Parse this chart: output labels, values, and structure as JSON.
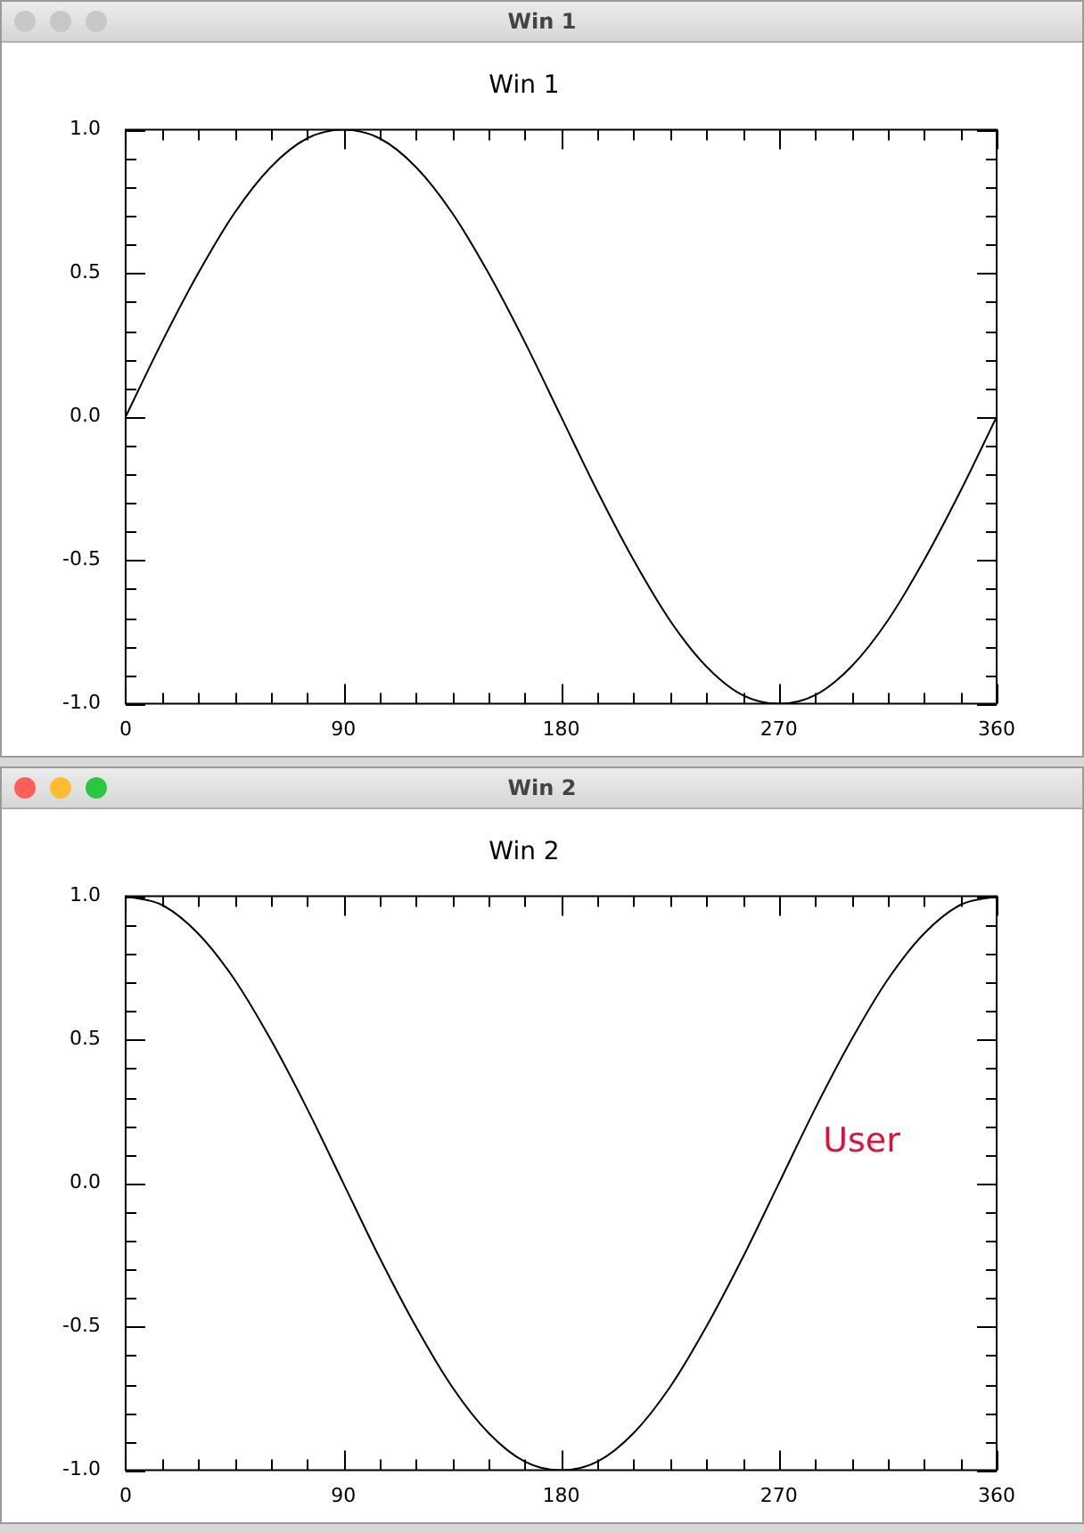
{
  "chart_data": [
    {
      "type": "line",
      "title": "Win 1",
      "x": [
        0,
        15,
        30,
        45,
        60,
        75,
        90,
        105,
        120,
        135,
        150,
        165,
        180,
        195,
        210,
        225,
        240,
        255,
        270,
        285,
        300,
        315,
        330,
        345,
        360
      ],
      "series": [
        {
          "color": "#000000",
          "values": [
            0,
            0.26,
            0.5,
            0.71,
            0.87,
            0.97,
            1,
            0.97,
            0.87,
            0.71,
            0.5,
            0.26,
            0,
            -0.26,
            -0.5,
            -0.71,
            -0.87,
            -0.97,
            -1,
            -0.97,
            -0.87,
            -0.71,
            -0.5,
            -0.26,
            0
          ]
        }
      ],
      "xlim": [
        0,
        360
      ],
      "xticks": [
        0,
        {
          "value": 15,
          "label": null
        },
        {
          "value": 30,
          "label": null
        },
        {
          "value": 45,
          "label": null
        },
        {
          "value": 60,
          "label": null
        },
        {
          "value": 75,
          "label": null
        },
        90,
        {
          "value": 105,
          "label": null
        },
        {
          "value": 120,
          "label": null
        },
        {
          "value": 135,
          "label": null
        },
        {
          "value": 150,
          "label": null
        },
        {
          "value": 165,
          "label": null
        },
        180,
        {
          "value": 195,
          "label": null
        },
        {
          "value": 210,
          "label": null
        },
        {
          "value": 225,
          "label": null
        },
        {
          "value": 240,
          "label": null
        },
        {
          "value": 255,
          "label": null
        },
        270,
        {
          "value": 285,
          "label": null
        },
        {
          "value": 300,
          "label": null
        },
        {
          "value": 315,
          "label": null
        },
        {
          "value": 330,
          "label": null
        },
        {
          "value": 345,
          "label": null
        },
        360
      ],
      "ylim": [
        -1,
        1
      ],
      "yticks": [
        {
          "value": -1,
          "label": "-1.0"
        },
        {
          "value": -0.9,
          "label": null
        },
        {
          "value": -0.8,
          "label": null
        },
        {
          "value": -0.7,
          "label": null
        },
        {
          "value": -0.6,
          "label": null
        },
        {
          "value": -0.5,
          "label": "-0.5"
        },
        {
          "value": -0.4,
          "label": null
        },
        {
          "value": -0.3,
          "label": null
        },
        {
          "value": -0.2,
          "label": null
        },
        {
          "value": -0.1,
          "label": null
        },
        {
          "value": 0,
          "label": "0.0"
        },
        {
          "value": 0.1,
          "label": null
        },
        {
          "value": 0.2,
          "label": null
        },
        {
          "value": 0.3,
          "label": null
        },
        {
          "value": 0.4,
          "label": null
        },
        {
          "value": 0.5,
          "label": "0.5"
        },
        {
          "value": 0.6,
          "label": null
        },
        {
          "value": 0.7,
          "label": null
        },
        {
          "value": 0.8,
          "label": null
        },
        {
          "value": 0.9,
          "label": null
        },
        {
          "value": 1,
          "label": "1.0"
        }
      ],
      "grid": false,
      "legend": false,
      "marker": "none",
      "line_style": "solid"
    },
    {
      "type": "line",
      "title": "Win 2",
      "x": [
        0,
        15,
        30,
        45,
        60,
        75,
        90,
        105,
        120,
        135,
        150,
        165,
        180,
        195,
        210,
        225,
        240,
        255,
        270,
        285,
        300,
        315,
        330,
        345,
        360
      ],
      "series": [
        {
          "color": "#000000",
          "values": [
            1,
            0.97,
            0.87,
            0.71,
            0.5,
            0.26,
            0,
            -0.26,
            -0.5,
            -0.71,
            -0.87,
            -0.97,
            -1,
            -0.97,
            -0.87,
            -0.71,
            -0.5,
            -0.26,
            0,
            0.26,
            0.5,
            0.71,
            0.87,
            0.97,
            1
          ]
        }
      ],
      "xlim": [
        0,
        360
      ],
      "xticks": [
        0,
        {
          "value": 15,
          "label": null
        },
        {
          "value": 30,
          "label": null
        },
        {
          "value": 45,
          "label": null
        },
        {
          "value": 60,
          "label": null
        },
        {
          "value": 75,
          "label": null
        },
        90,
        {
          "value": 105,
          "label": null
        },
        {
          "value": 120,
          "label": null
        },
        {
          "value": 135,
          "label": null
        },
        {
          "value": 150,
          "label": null
        },
        {
          "value": 165,
          "label": null
        },
        180,
        {
          "value": 195,
          "label": null
        },
        {
          "value": 210,
          "label": null
        },
        {
          "value": 225,
          "label": null
        },
        {
          "value": 240,
          "label": null
        },
        {
          "value": 255,
          "label": null
        },
        270,
        {
          "value": 285,
          "label": null
        },
        {
          "value": 300,
          "label": null
        },
        {
          "value": 315,
          "label": null
        },
        {
          "value": 330,
          "label": null
        },
        {
          "value": 345,
          "label": null
        },
        360
      ],
      "ylim": [
        -1,
        1
      ],
      "yticks": [
        {
          "value": -1,
          "label": "-1.0"
        },
        {
          "value": -0.9,
          "label": null
        },
        {
          "value": -0.8,
          "label": null
        },
        {
          "value": -0.7,
          "label": null
        },
        {
          "value": -0.6,
          "label": null
        },
        {
          "value": -0.5,
          "label": "-0.5"
        },
        {
          "value": -0.4,
          "label": null
        },
        {
          "value": -0.3,
          "label": null
        },
        {
          "value": -0.2,
          "label": null
        },
        {
          "value": -0.1,
          "label": null
        },
        {
          "value": 0,
          "label": "0.0"
        },
        {
          "value": 0.1,
          "label": null
        },
        {
          "value": 0.2,
          "label": null
        },
        {
          "value": 0.3,
          "label": null
        },
        {
          "value": 0.4,
          "label": null
        },
        {
          "value": 0.5,
          "label": "0.5"
        },
        {
          "value": 0.6,
          "label": null
        },
        {
          "value": 0.7,
          "label": null
        },
        {
          "value": 0.8,
          "label": null
        },
        {
          "value": 0.9,
          "label": null
        },
        {
          "value": 1,
          "label": "1.0"
        }
      ],
      "grid": false,
      "legend": false,
      "marker": "none",
      "line_style": "solid",
      "annotations": [
        "User"
      ]
    }
  ]
}
